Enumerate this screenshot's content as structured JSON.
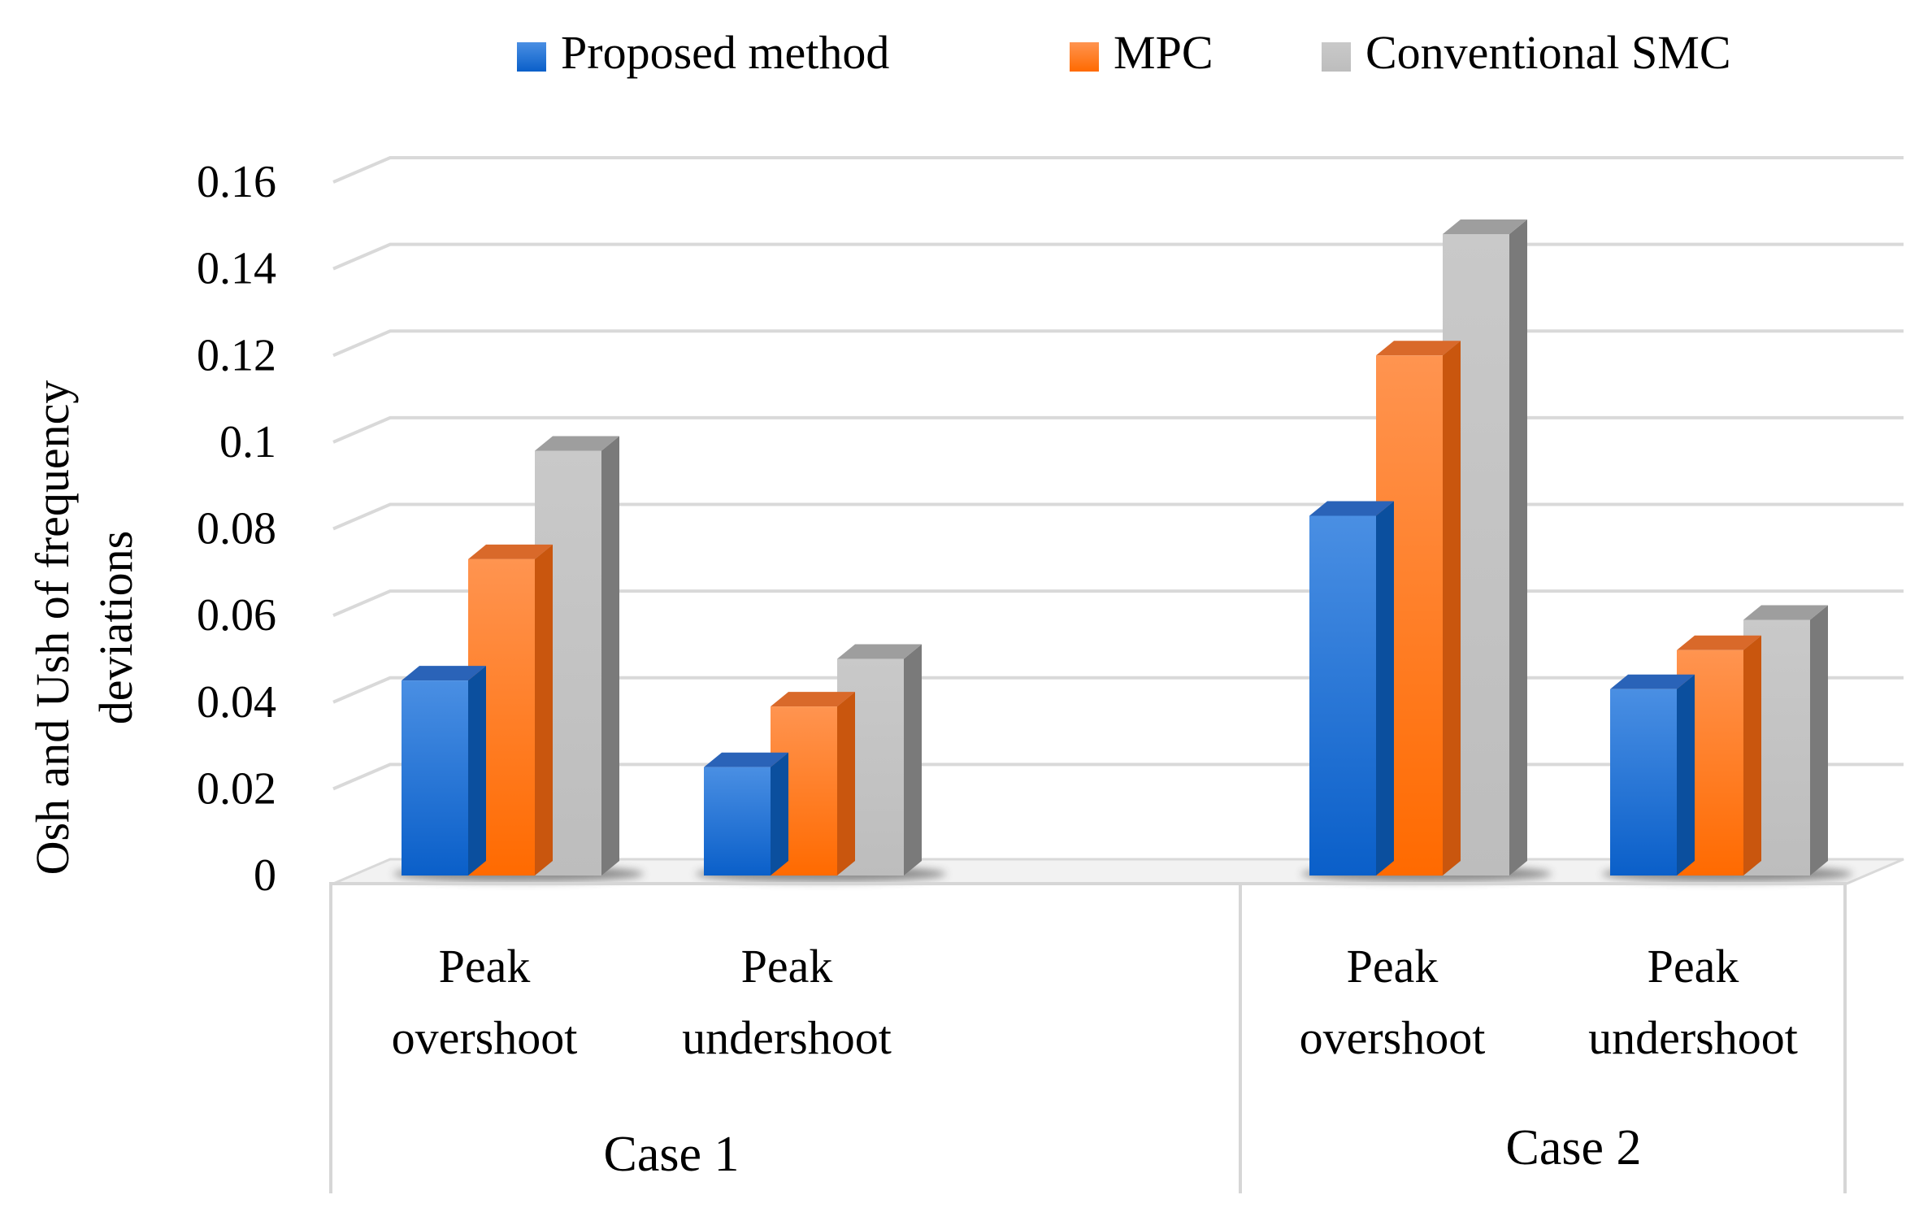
{
  "chart_data": {
    "type": "bar",
    "style": "3d-clustered-column",
    "ylabel_lines": [
      "Osh and Ush of frequency",
      "deviations"
    ],
    "xlabel": "",
    "ylim": [
      0,
      0.16
    ],
    "yticks": [
      0,
      0.02,
      0.04,
      0.06,
      0.08,
      0.1,
      0.12,
      0.14,
      0.16
    ],
    "ytick_labels": [
      "0",
      "0.02",
      "0.04",
      "0.06",
      "0.08",
      "0.1",
      "0.12",
      "0.14",
      "0.16"
    ],
    "grid": true,
    "legend_position": "top",
    "groups": [
      {
        "name": "Case 1",
        "categories": [
          [
            "Peak",
            "overshoot"
          ],
          [
            "Peak",
            "undershoot"
          ]
        ]
      },
      {
        "name": "Case 2",
        "categories": [
          [
            "Peak",
            "overshoot"
          ],
          [
            "Peak",
            "undershoot"
          ]
        ]
      }
    ],
    "series": [
      {
        "name": "Proposed method",
        "color": "#1F6FD1",
        "values": [
          0.045,
          0.025,
          0.083,
          0.043
        ]
      },
      {
        "name": "MPC",
        "color": "#FF7A1A",
        "values": [
          0.073,
          0.039,
          0.12,
          0.052
        ]
      },
      {
        "name": "Conventional SMC",
        "color": "#C4C4C4",
        "values": [
          0.098,
          0.05,
          0.148,
          0.059
        ]
      }
    ]
  }
}
